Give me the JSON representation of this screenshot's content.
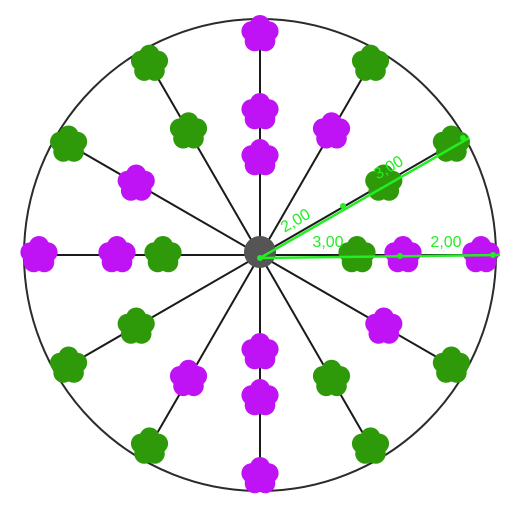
{
  "colors": {
    "background": "#ffffff",
    "circle_stroke": "#2b2b2b",
    "spoke_stroke": "#1a1a1a",
    "center_fill": "#555555",
    "flower_magenta": "#bf13f5",
    "flower_green": "#2e9a0a",
    "dimension": "#22ee22"
  },
  "flower_icons": {
    "magenta": "magenta-flower-icon",
    "green": "green-flower-icon"
  },
  "layout_spec": {
    "spoke_count": 12,
    "outer_ring": [
      "magenta",
      "green",
      "green",
      "magenta",
      "green",
      "green",
      "magenta",
      "green",
      "green",
      "magenta",
      "green",
      "green"
    ],
    "middle_ring": [
      "magenta",
      "magenta",
      "green",
      "magenta",
      "magenta",
      "green",
      "magenta",
      "magenta",
      "green",
      "magenta",
      "magenta",
      "green"
    ],
    "inner_ring": [
      "magenta",
      "green",
      "magenta",
      "green"
    ]
  },
  "dimensions": {
    "diag_outer_label": "3,00",
    "diag_inner_label": "2,00",
    "horiz_inner_label": "3,00",
    "horiz_outer_label": "2,00"
  }
}
